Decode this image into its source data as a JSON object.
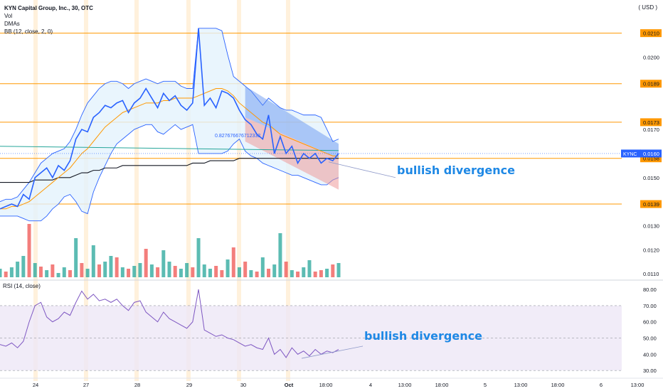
{
  "header": {
    "title": "KYN Capital Group, Inc., 30, OTC",
    "indicators": [
      "Vol",
      "DMAs",
      "BB (12, close, 2, 0)"
    ],
    "currency": "( USD )"
  },
  "colors": {
    "candle_up": "#26a69a",
    "candle_down": "#ef5350",
    "price_line": "#2962ff",
    "bb_band": "#2962ff",
    "bb_fill": "#e3f2fd",
    "ma_line": "#ff9800",
    "level_line": "#ff9800",
    "rsi_line": "#7e57c2",
    "rsi_fill": "#ede7f6",
    "annotation": "#2962ff",
    "session_band": "#ffe0b2"
  },
  "chart_data": {
    "type": "line",
    "symbol": "KYNC",
    "last_price": "0.0160",
    "y_ticks": [
      "0.0210",
      "0.0200",
      "0.0189",
      "0.0173",
      "0.0170",
      "0.0160",
      "0.0158",
      "0.0150",
      "0.0139",
      "0.0130",
      "0.0120",
      "0.0110"
    ],
    "ylim": [
      0.0108,
      0.0222
    ],
    "horizontal_levels": [
      0.021,
      0.0189,
      0.0173,
      0.0158,
      0.0139
    ],
    "highlighted_levels": [
      "0.0210",
      "0.0189",
      "0.0173",
      "0.0158",
      "0.0139"
    ],
    "x_ticks": [
      "24",
      "27",
      "28",
      "29",
      "30",
      "Oct",
      "18:00",
      "4",
      "13:00",
      "18:00",
      "5",
      "13:00",
      "18:00",
      "6",
      "13:00"
    ],
    "price_series": [
      0.0137,
      0.0138,
      0.0139,
      0.0138,
      0.0143,
      0.0141,
      0.015,
      0.0152,
      0.0154,
      0.015,
      0.0155,
      0.0153,
      0.0157,
      0.0166,
      0.017,
      0.0169,
      0.0175,
      0.0177,
      0.018,
      0.0179,
      0.0181,
      0.0182,
      0.0177,
      0.0181,
      0.0183,
      0.0187,
      0.0183,
      0.0179,
      0.0185,
      0.0182,
      0.0184,
      0.018,
      0.0178,
      0.0181,
      0.0212,
      0.018,
      0.0183,
      0.0179,
      0.0186,
      0.0185,
      0.0183,
      0.0178,
      0.0174,
      0.0172,
      0.0168,
      0.0166,
      0.0176,
      0.016,
      0.0167,
      0.016,
      0.0163,
      0.0156,
      0.016,
      0.0158,
      0.016,
      0.0156,
      0.0158,
      0.0157,
      0.016
    ],
    "bb_upper": [
      0.014,
      0.0141,
      0.0141,
      0.0142,
      0.0145,
      0.0148,
      0.0152,
      0.0156,
      0.0158,
      0.016,
      0.0161,
      0.0162,
      0.0165,
      0.017,
      0.0176,
      0.0181,
      0.0184,
      0.0187,
      0.0189,
      0.019,
      0.019,
      0.0189,
      0.0187,
      0.0189,
      0.019,
      0.0191,
      0.019,
      0.0189,
      0.019,
      0.019,
      0.019,
      0.0188,
      0.0187,
      0.0187,
      0.0212,
      0.0212,
      0.0212,
      0.0212,
      0.0211,
      0.0201,
      0.0192,
      0.019,
      0.0188,
      0.0186,
      0.0183,
      0.018,
      0.0183,
      0.0181,
      0.0179,
      0.0178,
      0.0178,
      0.0177,
      0.0176,
      0.0176,
      0.0176,
      0.0175,
      0.017,
      0.0165,
      0.0166
    ],
    "bb_lower": [
      0.0134,
      0.0134,
      0.0134,
      0.0134,
      0.0133,
      0.0132,
      0.0132,
      0.0132,
      0.0134,
      0.0137,
      0.0139,
      0.0142,
      0.0143,
      0.014,
      0.0136,
      0.0135,
      0.0144,
      0.015,
      0.0155,
      0.016,
      0.0164,
      0.0166,
      0.0168,
      0.017,
      0.0171,
      0.0172,
      0.0172,
      0.0169,
      0.0168,
      0.017,
      0.0172,
      0.017,
      0.0171,
      0.0172,
      0.016,
      0.016,
      0.016,
      0.016,
      0.016,
      0.0161,
      0.0164,
      0.0166,
      0.0161,
      0.0159,
      0.0158,
      0.0156,
      0.0155,
      0.0154,
      0.0153,
      0.0152,
      0.0151,
      0.0151,
      0.015,
      0.0149,
      0.0148,
      0.0147,
      0.0147,
      0.0149,
      0.015
    ],
    "ma_series": [
      0.0137,
      0.0137,
      0.0138,
      0.0138,
      0.0139,
      0.014,
      0.0142,
      0.0144,
      0.0146,
      0.0148,
      0.015,
      0.0152,
      0.0154,
      0.0157,
      0.016,
      0.0162,
      0.0165,
      0.0168,
      0.0171,
      0.0173,
      0.0175,
      0.0177,
      0.0178,
      0.0179,
      0.018,
      0.0181,
      0.0181,
      0.0181,
      0.0182,
      0.0182,
      0.0183,
      0.0183,
      0.0183,
      0.0183,
      0.0184,
      0.0185,
      0.0186,
      0.0187,
      0.0187,
      0.0186,
      0.0184,
      0.0181,
      0.0179,
      0.0177,
      0.0175,
      0.0173,
      0.0172,
      0.017,
      0.0168,
      0.0167,
      0.0166,
      0.0165,
      0.0164,
      0.0163,
      0.0162,
      0.0161,
      0.016,
      0.0159,
      0.0159
    ],
    "dma_black": [
      0.0148,
      0.0148,
      0.0148,
      0.0148,
      0.0148,
      0.0148,
      0.0149,
      0.0149,
      0.0149,
      0.0149,
      0.015,
      0.015,
      0.015,
      0.0151,
      0.0152,
      0.0152,
      0.0153,
      0.0153,
      0.0154,
      0.0154,
      0.0154,
      0.0155,
      0.0155,
      0.0155,
      0.0155,
      0.0155,
      0.0155,
      0.0155,
      0.0155,
      0.0155,
      0.0155,
      0.0155,
      0.0155,
      0.0156,
      0.0156,
      0.0156,
      0.0157,
      0.0157,
      0.0157,
      0.0157,
      0.0157,
      0.0158,
      0.0158,
      0.0158,
      0.0158,
      0.0158,
      0.0158,
      0.0158,
      0.0158,
      0.0158,
      0.0158,
      0.0158,
      0.0158,
      0.0158,
      0.0158,
      0.0158,
      0.0158,
      0.0158,
      0.0158
    ],
    "dma_teal_level": 0.0163,
    "volume_up": [
      true,
      false,
      true,
      true,
      true,
      false,
      true,
      false,
      true,
      false,
      true,
      true,
      false,
      true,
      false,
      true,
      true,
      false,
      true,
      true,
      false,
      true,
      false,
      true,
      true,
      false,
      true,
      false,
      true,
      true,
      false,
      true,
      true,
      false,
      true,
      true,
      true,
      false,
      false,
      true,
      false,
      true,
      false,
      true,
      false,
      true,
      false,
      true,
      true,
      false,
      true,
      false,
      true,
      true,
      false,
      false,
      true,
      false,
      true
    ],
    "volume": [
      12,
      8,
      14,
      22,
      30,
      75,
      20,
      15,
      10,
      18,
      6,
      14,
      10,
      55,
      20,
      12,
      45,
      18,
      22,
      30,
      28,
      14,
      12,
      16,
      20,
      40,
      18,
      14,
      38,
      22,
      16,
      12,
      20,
      14,
      55,
      18,
      12,
      16,
      10,
      25,
      42,
      14,
      22,
      10,
      8,
      28,
      12,
      18,
      62,
      22,
      10,
      8,
      14,
      24,
      8,
      10,
      12,
      18,
      20
    ],
    "rsi_ticks": [
      "80.00",
      "70.00",
      "60.00",
      "50.00",
      "40.00",
      "30.00"
    ],
    "rsi_ylim": [
      27,
      84
    ],
    "rsi_band": [
      30,
      70
    ],
    "rsi_series": [
      46,
      45,
      47,
      44,
      48,
      60,
      70,
      72,
      63,
      60,
      62,
      66,
      64,
      72,
      79,
      74,
      77,
      73,
      74,
      72,
      74,
      70,
      67,
      72,
      73,
      66,
      63,
      60,
      66,
      62,
      60,
      58,
      56,
      60,
      80,
      55,
      53,
      51,
      52,
      50,
      49,
      47,
      45,
      46,
      44,
      43,
      50,
      40,
      43,
      38,
      44,
      40,
      42,
      39,
      43,
      40,
      42,
      41,
      43
    ],
    "annotations": {
      "ratio_label": "0.827676676712332",
      "divergence_text": "bullish divergence",
      "rsi_divergence_text": "bullish divergence"
    }
  }
}
